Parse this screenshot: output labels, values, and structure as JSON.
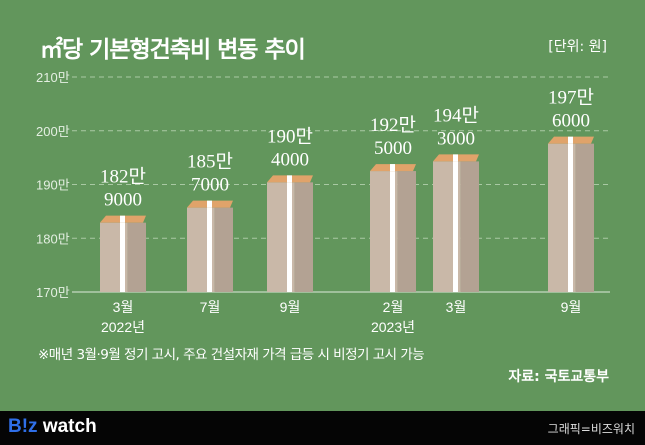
{
  "header": {
    "title": "㎡당 기본형건축비 변동 추이",
    "unit": "[단위: 원]"
  },
  "chart_data": {
    "type": "bar",
    "title": "㎡당 기본형건축비 변동 추이",
    "unit": "[단위: 원]",
    "categories": [
      "3월\n2022년",
      "7월",
      "9월",
      "2월\n2023년",
      "3월",
      "9월"
    ],
    "category_labels": [
      [
        "3월",
        "2022년"
      ],
      [
        "7월",
        ""
      ],
      [
        "9월",
        ""
      ],
      [
        "2월",
        "2023년"
      ],
      [
        "3월",
        ""
      ],
      [
        "9월",
        ""
      ]
    ],
    "values": [
      1829000,
      1857000,
      1904000,
      1925000,
      1943000,
      1976000
    ],
    "data_labels": [
      [
        "182만",
        "9000"
      ],
      [
        "185만",
        "7000"
      ],
      [
        "190만",
        "4000"
      ],
      [
        "192만",
        "5000"
      ],
      [
        "194만",
        "3000"
      ],
      [
        "197만",
        "6000"
      ]
    ],
    "yticks": [
      1700000,
      1800000,
      1900000,
      2000000,
      2100000
    ],
    "ytick_labels": [
      "170만",
      "180만",
      "190만",
      "200만",
      "210만"
    ],
    "ylim": [
      1700000,
      2100000
    ],
    "grid": true,
    "xlabel": "",
    "ylabel": ""
  },
  "note": "※매년 3월·9월 정기 고시, 주요 건설자재 가격 급등 시 비정기 고시 가능",
  "source": "자료: 국토교통부",
  "footer": {
    "logo_b": "B!z",
    "logo_rest": " watch",
    "credit": "그래픽=비즈워치"
  },
  "colors": {
    "background": "#62965c",
    "bar": "#c9b8a8",
    "bar_side": "#b3a293",
    "band": "#ffffff",
    "money": "#e0a36a"
  }
}
